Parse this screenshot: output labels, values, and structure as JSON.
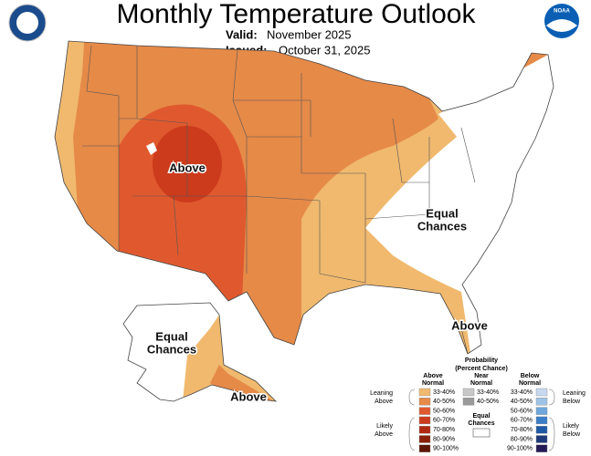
{
  "header": {
    "title": "Monthly Temperature Outlook",
    "valid_label": "Valid:",
    "valid": "November 2025",
    "issued_label": "Issued:",
    "issued": "October 31, 2025",
    "noaa_logo": "NOAA"
  },
  "map_labels": [
    {
      "lines": [
        "Above"
      ]
    },
    {
      "lines": [
        "Equal",
        "Chances"
      ]
    },
    {
      "lines": [
        "Above"
      ]
    },
    {
      "lines": [
        "Equal",
        "Chances"
      ]
    },
    {
      "lines": [
        "Above"
      ]
    }
  ],
  "legend": {
    "title": [
      "Probability",
      "(Percent Chance)"
    ],
    "columns": [
      {
        "header": [
          "Above",
          "Normal"
        ],
        "items": [
          {
            "label": "33-40%",
            "color": "#f0b96e"
          },
          {
            "label": "40-50%",
            "color": "#e68a48"
          },
          {
            "label": "50-60%",
            "color": "#e0592e"
          },
          {
            "label": "60-70%",
            "color": "#cc3b1c"
          },
          {
            "label": "70-80%",
            "color": "#b02a10"
          },
          {
            "label": "80-90%",
            "color": "#8a2008"
          },
          {
            "label": "90-100%",
            "color": "#5e1604"
          }
        ]
      },
      {
        "header": [
          "Near",
          "Normal"
        ],
        "items": [
          {
            "label": "33-40%",
            "color": "#c8c8c8"
          },
          {
            "label": "40-50%",
            "color": "#9a9a9a"
          }
        ]
      },
      {
        "header": [
          "Below",
          "Normal"
        ],
        "items": [
          {
            "label": "33-40%",
            "color": "#c6d9ef"
          },
          {
            "label": "40-50%",
            "color": "#9fc3e6"
          },
          {
            "label": "50-60%",
            "color": "#6fa8dc"
          },
          {
            "label": "60-70%",
            "color": "#3a7fc8"
          },
          {
            "label": "70-80%",
            "color": "#1f5aa6"
          },
          {
            "label": "80-90%",
            "color": "#1e3a7a"
          },
          {
            "label": "90-100%",
            "color": "#241a55"
          }
        ]
      }
    ],
    "equal_chances": [
      "Equal",
      "Chances"
    ],
    "groups": [
      [
        "Leaning",
        "Above"
      ],
      [
        "Likely",
        "Above"
      ],
      [
        "Leaning",
        "Below"
      ],
      [
        "Likely",
        "Below"
      ]
    ]
  }
}
